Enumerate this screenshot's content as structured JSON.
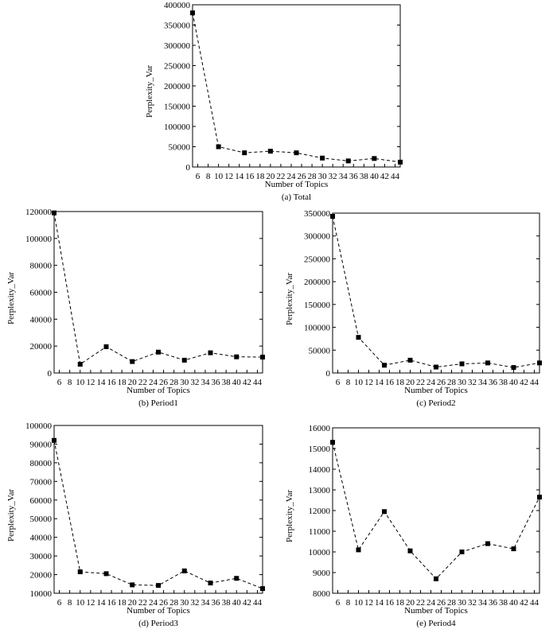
{
  "chart_data": [
    {
      "type": "line",
      "caption": "(a) Total",
      "xlabel": "Number of Topics",
      "ylabel": "Perplexity_Var",
      "x_ticks": [
        6,
        8,
        10,
        12,
        14,
        16,
        18,
        20,
        22,
        24,
        26,
        28,
        30,
        32,
        34,
        36,
        38,
        40,
        42,
        44
      ],
      "xlim": [
        5,
        45
      ],
      "ylim": [
        0,
        400000
      ],
      "y_ticks": [
        0,
        50000,
        100000,
        150000,
        200000,
        250000,
        300000,
        350000,
        400000
      ],
      "series": [
        {
          "x": [
            5,
            10,
            15,
            20,
            25,
            30,
            35,
            40,
            45
          ],
          "y": [
            380000,
            50000,
            35000,
            39000,
            35000,
            22000,
            15000,
            21000,
            12000
          ]
        }
      ]
    },
    {
      "type": "line",
      "caption": "(b) Period1",
      "xlabel": "Number of Topics",
      "ylabel": "Perplexity_Var",
      "x_ticks": [
        6,
        8,
        10,
        12,
        14,
        16,
        18,
        20,
        22,
        24,
        26,
        28,
        30,
        32,
        34,
        36,
        38,
        40,
        42,
        44
      ],
      "xlim": [
        5,
        45
      ],
      "ylim": [
        0,
        120000
      ],
      "y_ticks": [
        0,
        20000,
        40000,
        60000,
        80000,
        100000,
        120000
      ],
      "series": [
        {
          "x": [
            5,
            10,
            15,
            20,
            25,
            30,
            35,
            40,
            45
          ],
          "y": [
            119000,
            6500,
            19500,
            8500,
            15500,
            9500,
            15000,
            12000,
            11800
          ]
        }
      ]
    },
    {
      "type": "line",
      "caption": "(c) Period2",
      "xlabel": "Number of Topics",
      "ylabel": "Perplexity_Var",
      "x_ticks": [
        6,
        8,
        10,
        12,
        14,
        16,
        18,
        20,
        22,
        24,
        26,
        28,
        30,
        32,
        34,
        36,
        38,
        40,
        42,
        44
      ],
      "xlim": [
        5,
        45
      ],
      "ylim": [
        0,
        350000
      ],
      "y_ticks": [
        0,
        50000,
        100000,
        150000,
        200000,
        250000,
        300000,
        350000
      ],
      "series": [
        {
          "x": [
            5,
            10,
            15,
            20,
            25,
            30,
            35,
            40,
            45
          ],
          "y": [
            343000,
            78000,
            17000,
            28000,
            13000,
            20000,
            22000,
            12000,
            22000
          ]
        }
      ]
    },
    {
      "type": "line",
      "caption": "(d) Period3",
      "xlabel": "Number of Topics",
      "ylabel": "Perplexity_Var",
      "x_ticks": [
        6,
        8,
        10,
        12,
        14,
        16,
        18,
        20,
        22,
        24,
        26,
        28,
        30,
        32,
        34,
        36,
        38,
        40,
        42,
        44
      ],
      "xlim": [
        5,
        45
      ],
      "ylim": [
        10000,
        100000
      ],
      "y_ticks": [
        10000,
        20000,
        30000,
        40000,
        50000,
        60000,
        70000,
        80000,
        90000,
        100000
      ],
      "series": [
        {
          "x": [
            5,
            10,
            15,
            20,
            25,
            30,
            35,
            40,
            45
          ],
          "y": [
            92000,
            21500,
            20500,
            14500,
            14200,
            22000,
            15500,
            18000,
            12500
          ]
        }
      ]
    },
    {
      "type": "line",
      "caption": "(e) Period4",
      "xlabel": "Number of Topics",
      "ylabel": "Perplexity_Var",
      "x_ticks": [
        6,
        8,
        10,
        12,
        14,
        16,
        18,
        20,
        22,
        24,
        26,
        28,
        30,
        32,
        34,
        36,
        38,
        40,
        42,
        44
      ],
      "xlim": [
        5,
        45
      ],
      "ylim": [
        8000,
        16000
      ],
      "y_ticks": [
        8000,
        9000,
        10000,
        11000,
        12000,
        13000,
        14000,
        15000,
        16000
      ],
      "series": [
        {
          "x": [
            5,
            10,
            15,
            20,
            25,
            30,
            35,
            40,
            45
          ],
          "y": [
            15300,
            10100,
            11950,
            10050,
            8700,
            10000,
            10400,
            10150,
            12650
          ]
        }
      ]
    }
  ]
}
